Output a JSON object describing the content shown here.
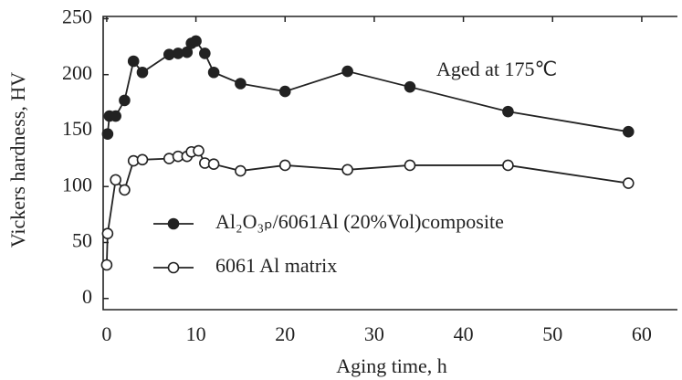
{
  "chart_data": {
    "type": "line",
    "annotation": "Aged at 175℃",
    "x_label": "Aging time, h",
    "y_label": "Vickers hardness, HV",
    "xlim": [
      -0.4,
      64
    ],
    "xticks": [
      0,
      10,
      20,
      30,
      40,
      50,
      60
    ],
    "ylim": [
      -10,
      252
    ],
    "yticks": [
      0,
      50,
      100,
      150,
      200,
      250
    ],
    "series": [
      {
        "name": "Al₂O₃ₚ/6061Al (20%Vol)composite",
        "color": "#222222",
        "marker": "filled",
        "x": [
          0.1,
          0.3,
          1,
          2,
          3,
          4,
          7,
          8,
          9,
          9.5,
          10,
          11,
          12,
          15,
          20,
          27,
          34,
          45,
          58.5
        ],
        "values": [
          147,
          163,
          163,
          177,
          212,
          202,
          218,
          219,
          220,
          228,
          230,
          219,
          202,
          192,
          185,
          203,
          189,
          167,
          149
        ]
      },
      {
        "name": "6061 Al matrix",
        "color": "#222222",
        "marker": "open",
        "x": [
          0,
          0.1,
          1,
          2,
          3,
          4,
          7,
          8,
          9,
          9.5,
          10.3,
          11,
          12,
          15,
          20,
          27,
          34,
          45,
          58.5
        ],
        "values": [
          30,
          58,
          106,
          97,
          123,
          124,
          125,
          127,
          127,
          131,
          132,
          121,
          120,
          114,
          119,
          115,
          119,
          119,
          103
        ]
      }
    ]
  }
}
